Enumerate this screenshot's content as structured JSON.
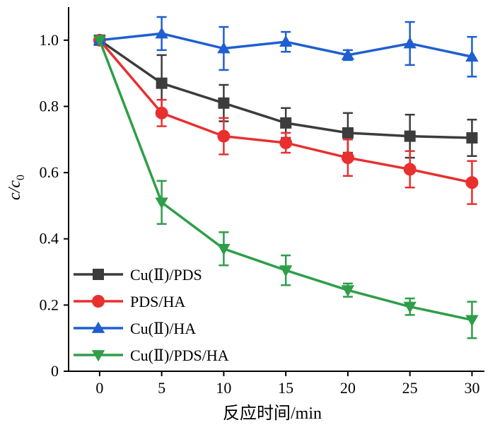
{
  "chart_data": {
    "type": "line",
    "x": [
      0,
      5,
      10,
      15,
      20,
      25,
      30
    ],
    "xlabel": "反应时间/min",
    "ylabel_main": "c/c",
    "ylabel_sub": "0",
    "xlim": [
      -2.5,
      31
    ],
    "ylim": [
      0,
      1.1
    ],
    "xticks": [
      0,
      5,
      10,
      15,
      20,
      25,
      30
    ],
    "yticks": [
      0,
      0.2,
      0.4,
      0.6,
      0.8,
      1.0
    ],
    "ytick_labels": [
      "0",
      "0.2",
      "0.4",
      "0.6",
      "0.8",
      "1.0"
    ],
    "grid": false,
    "legend_position": "bottom-left",
    "series": [
      {
        "name": "Cu(Ⅱ)/PDS",
        "color": "#3c3c3c",
        "marker": "square",
        "values": [
          1.0,
          0.87,
          0.81,
          0.75,
          0.72,
          0.71,
          0.705
        ],
        "errors": [
          0.0,
          0.085,
          0.055,
          0.045,
          0.06,
          0.065,
          0.055
        ]
      },
      {
        "name": "PDS/HA",
        "color": "#e8302f",
        "marker": "circle",
        "values": [
          1.0,
          0.78,
          0.71,
          0.69,
          0.645,
          0.61,
          0.57
        ],
        "errors": [
          0.0,
          0.04,
          0.055,
          0.03,
          0.055,
          0.055,
          0.065
        ]
      },
      {
        "name": "Cu(Ⅱ)/HA",
        "color": "#1f5fcf",
        "marker": "triangle-up",
        "values": [
          1.0,
          1.02,
          0.975,
          0.995,
          0.955,
          0.99,
          0.95
        ],
        "errors": [
          0.0,
          0.05,
          0.065,
          0.03,
          0.015,
          0.065,
          0.06
        ]
      },
      {
        "name": "Cu(Ⅱ)/PDS/HA",
        "color": "#2e9e48",
        "marker": "triangle-down",
        "values": [
          1.0,
          0.51,
          0.37,
          0.305,
          0.245,
          0.195,
          0.155
        ],
        "errors": [
          0.0,
          0.065,
          0.05,
          0.045,
          0.02,
          0.025,
          0.055
        ]
      }
    ]
  }
}
